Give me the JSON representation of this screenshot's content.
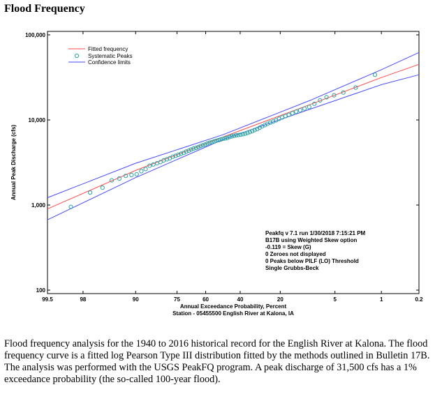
{
  "page": {
    "title": "Flood Frequency",
    "caption": "Flood frequency analysis for the 1940 to 2016 historical record for the English River at Kalona. The flood frequency curve is a fitted log Pearson Type III distribution fitted by the methods outlined in Bulletin 17B. The analysis was performed with the USGS PeakFQ program. A peak discharge of 31,500 cfs has a 1% exceedance probability (the so-called 100-year flood)."
  },
  "colors": {
    "fitted": "#ff4a4a",
    "confidence": "#4a4aff",
    "systematic": "#2aa3a3"
  },
  "chart_data": {
    "type": "scatter",
    "xlabel": "Annual Exceedance Probability, Percent",
    "xlabel2": "Station - 05455500  English River at Kalona, IA",
    "ylabel": "Annual Peak Discharge (cfs)",
    "x_scale": "normal-probability (reversed)",
    "y_scale": "log",
    "ylim": [
      100,
      100000
    ],
    "xlim": [
      99.5,
      0.2
    ],
    "x_ticks": [
      {
        "value": 99.5,
        "label": "99.5"
      },
      {
        "value": 98,
        "label": "98"
      },
      {
        "value": 90,
        "label": "90"
      },
      {
        "value": 75,
        "label": "75"
      },
      {
        "value": 60,
        "label": "60"
      },
      {
        "value": 40,
        "label": "40"
      },
      {
        "value": 20,
        "label": "20"
      },
      {
        "value": 5,
        "label": "5"
      },
      {
        "value": 1,
        "label": "1"
      },
      {
        "value": 0.2,
        "label": "0.2"
      }
    ],
    "y_ticks": [
      {
        "value": 100,
        "label": "100"
      },
      {
        "value": 1000,
        "label": "1,000"
      },
      {
        "value": 10000,
        "label": "10,000"
      },
      {
        "value": 100000,
        "label": "100,000"
      }
    ],
    "legend": [
      "Fitted frequency",
      "Systematic Peaks",
      "Confidence limits"
    ],
    "legend_position": "top-left",
    "annotation": [
      "Peakfq v 7.1 run 1/30/2018 7:15:21 PM",
      "B17B using Weighted Skew option",
      "-0.119 = Skew (G)",
      "0 Zeroes not displayed",
      "0 Peaks below PILF (LO) Threshold",
      "Single Grubbs-Beck"
    ],
    "series": [
      {
        "name": "Fitted frequency",
        "kind": "line",
        "points": [
          [
            99.5,
            900
          ],
          [
            90,
            2550
          ],
          [
            50,
            6300
          ],
          [
            10,
            15200
          ],
          [
            1,
            31500
          ],
          [
            0.2,
            45000
          ]
        ]
      },
      {
        "name": "Confidence limits",
        "kind": "line",
        "points": [
          [
            99.5,
            1220
          ],
          [
            90,
            3100
          ],
          [
            50,
            6700
          ],
          [
            10,
            17000
          ],
          [
            1,
            39000
          ],
          [
            0.2,
            62000
          ]
        ]
      },
      {
        "name": "Confidence limits",
        "kind": "line",
        "points": [
          [
            99.5,
            670
          ],
          [
            90,
            2100
          ],
          [
            50,
            5900
          ],
          [
            10,
            13400
          ],
          [
            1,
            26000
          ],
          [
            0.2,
            34000
          ]
        ]
      },
      {
        "name": "Systematic Peaks",
        "kind": "scatter",
        "points": [
          [
            98.72,
            950
          ],
          [
            97.44,
            1400
          ],
          [
            96.15,
            1600
          ],
          [
            94.87,
            1950
          ],
          [
            93.59,
            2050
          ],
          [
            92.31,
            2200
          ],
          [
            91.03,
            2250
          ],
          [
            89.74,
            2300
          ],
          [
            88.46,
            2500
          ],
          [
            87.18,
            2650
          ],
          [
            85.9,
            2900
          ],
          [
            84.62,
            3000
          ],
          [
            83.33,
            3100
          ],
          [
            82.05,
            3200
          ],
          [
            80.77,
            3350
          ],
          [
            79.49,
            3450
          ],
          [
            78.21,
            3550
          ],
          [
            76.92,
            3700
          ],
          [
            75.64,
            3800
          ],
          [
            74.36,
            3900
          ],
          [
            73.08,
            4000
          ],
          [
            71.79,
            4100
          ],
          [
            70.51,
            4250
          ],
          [
            69.23,
            4350
          ],
          [
            67.95,
            4500
          ],
          [
            66.67,
            4600
          ],
          [
            65.38,
            4700
          ],
          [
            64.1,
            4800
          ],
          [
            62.82,
            4950
          ],
          [
            61.54,
            5050
          ],
          [
            60.26,
            5150
          ],
          [
            58.97,
            5300
          ],
          [
            57.69,
            5400
          ],
          [
            56.41,
            5500
          ],
          [
            55.13,
            5600
          ],
          [
            53.85,
            5700
          ],
          [
            52.56,
            5800
          ],
          [
            51.28,
            5900
          ],
          [
            50.0,
            6000
          ],
          [
            48.72,
            6050
          ],
          [
            47.44,
            6150
          ],
          [
            46.15,
            6300
          ],
          [
            44.87,
            6400
          ],
          [
            43.59,
            6500
          ],
          [
            42.31,
            6600
          ],
          [
            41.03,
            6650
          ],
          [
            39.74,
            6700
          ],
          [
            38.46,
            6800
          ],
          [
            37.18,
            6900
          ],
          [
            35.9,
            7050
          ],
          [
            34.62,
            7200
          ],
          [
            33.33,
            7400
          ],
          [
            32.05,
            7600
          ],
          [
            30.77,
            7800
          ],
          [
            29.49,
            8100
          ],
          [
            28.21,
            8400
          ],
          [
            26.92,
            8700
          ],
          [
            25.64,
            9000
          ],
          [
            24.36,
            9300
          ],
          [
            23.08,
            9600
          ],
          [
            21.79,
            9900
          ],
          [
            20.51,
            10300
          ],
          [
            19.23,
            10700
          ],
          [
            17.95,
            11100
          ],
          [
            16.67,
            11500
          ],
          [
            15.38,
            12000
          ],
          [
            14.1,
            12500
          ],
          [
            12.82,
            13000
          ],
          [
            11.54,
            13600
          ],
          [
            10.26,
            14200
          ],
          [
            8.97,
            15500
          ],
          [
            7.69,
            17000
          ],
          [
            6.41,
            18500
          ],
          [
            5.13,
            19500
          ],
          [
            3.85,
            21000
          ],
          [
            2.56,
            24000
          ],
          [
            1.28,
            34000
          ]
        ]
      }
    ]
  }
}
